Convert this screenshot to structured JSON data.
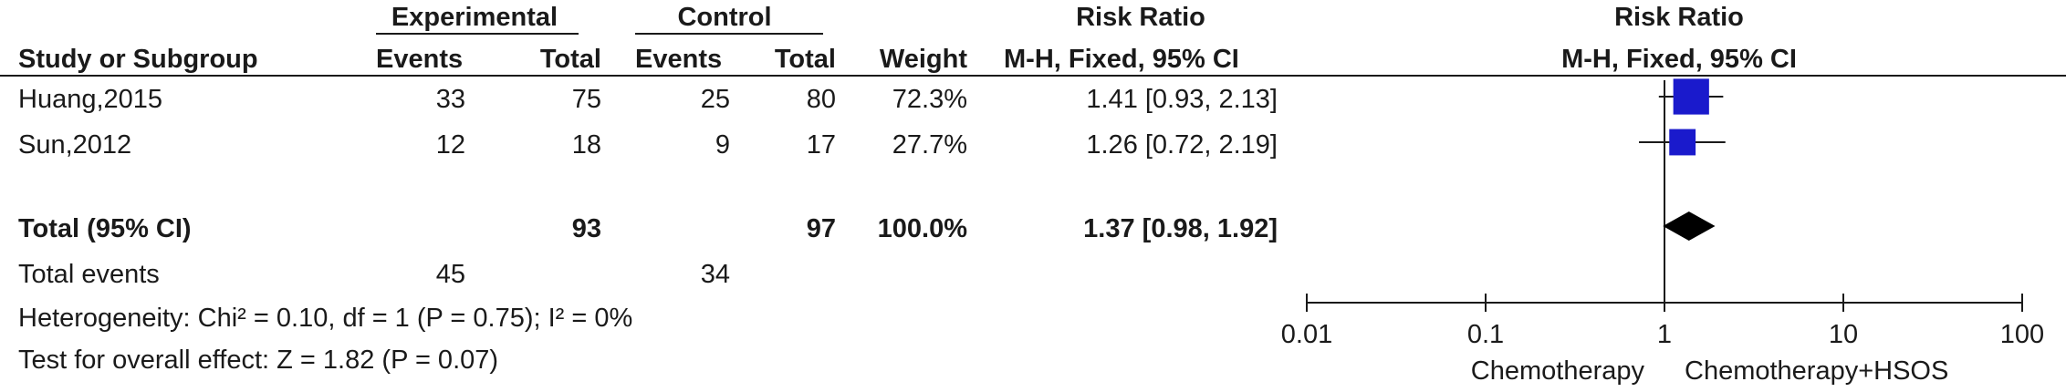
{
  "header": {
    "experimental": "Experimental",
    "control": "Control",
    "risk_ratio_left": "Risk Ratio",
    "risk_ratio_right": "Risk Ratio",
    "study": "Study or Subgroup",
    "exp_events": "Events",
    "exp_total": "Total",
    "ctl_events": "Events",
    "ctl_total": "Total",
    "weight": "Weight",
    "method_left": "M-H, Fixed, 95% CI",
    "method_right": "M-H, Fixed, 95% CI"
  },
  "studies": [
    {
      "name": "Huang,2015",
      "exp_events": "33",
      "exp_total": "75",
      "ctl_events": "25",
      "ctl_total": "80",
      "weight": "72.3%",
      "rr_text": "1.41 [0.93, 2.13]"
    },
    {
      "name": "Sun,2012",
      "exp_events": "12",
      "exp_total": "18",
      "ctl_events": "9",
      "ctl_total": "17",
      "weight": "27.7%",
      "rr_text": "1.26 [0.72, 2.19]"
    }
  ],
  "total": {
    "label": "Total (95% CI)",
    "exp_total": "93",
    "ctl_total": "97",
    "weight": "100.0%",
    "rr_text": "1.37 [0.98, 1.92]"
  },
  "total_events": {
    "label": "Total events",
    "exp": "45",
    "ctl": "34"
  },
  "heterogeneity": "Heterogeneity: Chi² = 0.10, df = 1 (P = 0.75); I² = 0%",
  "overall_effect": "Test for overall effect: Z = 1.82 (P = 0.07)",
  "axis": {
    "ticks": [
      "0.01",
      "0.1",
      "1",
      "10",
      "100"
    ],
    "favours_left": "Chemotherapy",
    "favours_right": "Chemotherapy+HSOS"
  },
  "colors": {
    "study_marker": "#1a1acc",
    "diamond": "#000000",
    "text": "#1a1a1a"
  },
  "chart_data": {
    "type": "forest",
    "scale": "log",
    "xlim": [
      0.01,
      100
    ],
    "reference_line": 1,
    "studies": [
      {
        "name": "Huang,2015",
        "rr": 1.41,
        "ci": [
          0.93,
          2.13
        ],
        "weight": 72.3
      },
      {
        "name": "Sun,2012",
        "rr": 1.26,
        "ci": [
          0.72,
          2.19
        ],
        "weight": 27.7
      }
    ],
    "pooled": {
      "rr": 1.37,
      "ci": [
        0.98,
        1.92
      ]
    }
  }
}
